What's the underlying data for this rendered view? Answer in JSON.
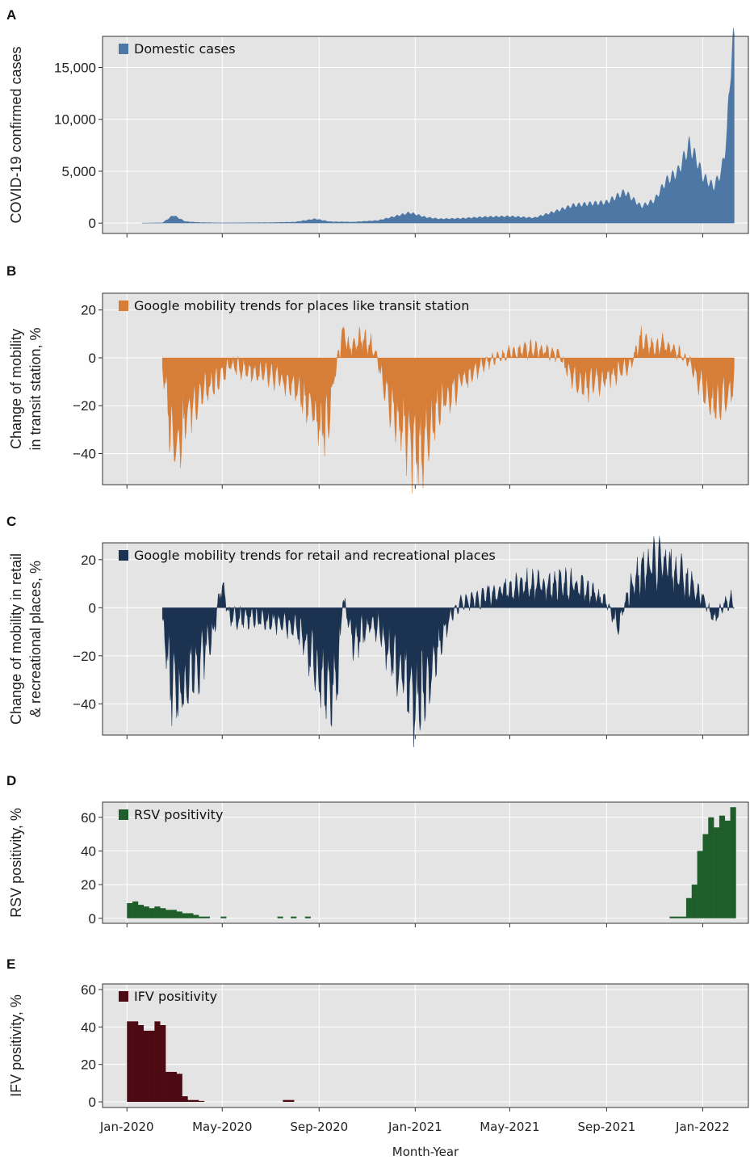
{
  "x_axis": {
    "title": "Month-Year",
    "tick_labels": [
      "Jan-2020",
      "May-2020",
      "Sep-2020",
      "Jan-2021",
      "May-2021",
      "Sep-2021",
      "Jan-2022"
    ],
    "range": [
      "2019-12-01",
      "2022-02-28"
    ]
  },
  "colors": {
    "panel_bg": "#e4e4e4",
    "grid": "#ffffff",
    "cases": "#4d77a4",
    "transit": "#d67d38",
    "retail": "#1b3250",
    "rsv": "#1f5e2a",
    "ifv": "#4d0a12"
  },
  "chart_data": [
    {
      "letter": "A",
      "type": "area",
      "ylabel": "COVID-19 confirmed cases",
      "ylim": [
        -1000,
        18000
      ],
      "yticks": [
        0,
        5000,
        10000,
        15000
      ],
      "ytick_labels": [
        "0",
        "5,000",
        "10,000",
        "15,000"
      ],
      "grid": true,
      "legend": "top-left",
      "series": [
        {
          "name": "Domestic cases",
          "x": [
            "2020-01-20",
            "2020-02-15",
            "2020-02-29",
            "2020-03-15",
            "2020-04-01",
            "2020-05-01",
            "2020-06-01",
            "2020-07-01",
            "2020-08-01",
            "2020-08-27",
            "2020-09-15",
            "2020-10-15",
            "2020-11-15",
            "2020-12-01",
            "2020-12-25",
            "2021-01-15",
            "2021-02-01",
            "2021-03-01",
            "2021-04-01",
            "2021-05-01",
            "2021-06-01",
            "2021-07-01",
            "2021-07-20",
            "2021-08-15",
            "2021-09-01",
            "2021-09-24",
            "2021-10-15",
            "2021-11-01",
            "2021-11-15",
            "2021-12-01",
            "2021-12-15",
            "2021-12-25",
            "2022-01-01",
            "2022-01-15",
            "2022-01-25",
            "2022-02-01",
            "2022-02-05",
            "2022-02-10"
          ],
          "y": [
            1,
            30,
            750,
            150,
            60,
            20,
            40,
            50,
            100,
            400,
            130,
            100,
            250,
            550,
            1000,
            550,
            400,
            450,
            600,
            650,
            500,
            1200,
            1700,
            1900,
            2000,
            3000,
            1600,
            2200,
            4000,
            5000,
            7500,
            6000,
            4500,
            3500,
            5000,
            8500,
            15000,
            17300
          ]
        }
      ]
    },
    {
      "letter": "B",
      "type": "area",
      "ylabel": "Change of mobility\nin transit station, %",
      "ylim": [
        -53,
        27
      ],
      "yticks": [
        20,
        0,
        -20,
        -40
      ],
      "ytick_labels": [
        "20",
        "0",
        "−20",
        "−40"
      ],
      "grid": true,
      "legend": "top-left",
      "series": [
        {
          "name": "Google mobility trends for places like transit station",
          "x": [
            "2020-02-15",
            "2020-02-25",
            "2020-03-05",
            "2020-03-20",
            "2020-04-05",
            "2020-04-20",
            "2020-05-10",
            "2020-06-01",
            "2020-07-01",
            "2020-08-01",
            "2020-08-20",
            "2020-09-01",
            "2020-09-10",
            "2020-09-20",
            "2020-10-01",
            "2020-10-10",
            "2020-10-20",
            "2020-11-01",
            "2020-11-10",
            "2020-11-20",
            "2020-12-01",
            "2020-12-15",
            "2020-12-30",
            "2021-01-15",
            "2021-02-01",
            "2021-03-01",
            "2021-04-01",
            "2021-05-01",
            "2021-06-01",
            "2021-07-01",
            "2021-07-15",
            "2021-08-01",
            "2021-09-01",
            "2021-10-01",
            "2021-10-15",
            "2021-11-01",
            "2021-11-15",
            "2021-12-01",
            "2021-12-15",
            "2022-01-01",
            "2022-01-15",
            "2022-02-01",
            "2022-02-10"
          ],
          "y": [
            -3,
            -28,
            -35,
            -22,
            -14,
            -12,
            -3,
            -5,
            -8,
            -12,
            -20,
            -27,
            -30,
            -8,
            10,
            4,
            8,
            7,
            4,
            -8,
            -20,
            -28,
            -40,
            -35,
            -20,
            -10,
            -2,
            2,
            4,
            2,
            -6,
            -12,
            -8,
            -3,
            8,
            4,
            6,
            2,
            -2,
            -12,
            -20,
            -15,
            -10
          ]
        }
      ]
    },
    {
      "letter": "C",
      "type": "area",
      "ylabel": "Change of mobility in retail\n& recreational places, %",
      "ylim": [
        -53,
        27
      ],
      "yticks": [
        20,
        0,
        -20,
        -40
      ],
      "ytick_labels": [
        "20",
        "0",
        "−20",
        "−40"
      ],
      "grid": true,
      "legend": "top-left",
      "series": [
        {
          "name": "Google mobility trends for retail and recreational places",
          "x": [
            "2020-02-15",
            "2020-02-25",
            "2020-03-05",
            "2020-03-20",
            "2020-04-05",
            "2020-04-20",
            "2020-05-01",
            "2020-05-10",
            "2020-06-01",
            "2020-07-01",
            "2020-08-01",
            "2020-08-20",
            "2020-09-01",
            "2020-09-15",
            "2020-09-25",
            "2020-10-01",
            "2020-10-15",
            "2020-11-01",
            "2020-11-15",
            "2020-12-01",
            "2020-12-15",
            "2021-01-01",
            "2021-01-15",
            "2021-02-01",
            "2021-02-15",
            "2021-03-01",
            "2021-04-01",
            "2021-05-01",
            "2021-06-01",
            "2021-07-01",
            "2021-08-01",
            "2021-09-01",
            "2021-09-15",
            "2021-10-01",
            "2021-10-15",
            "2021-11-01",
            "2021-11-15",
            "2021-12-01",
            "2021-12-15",
            "2022-01-01",
            "2022-01-15",
            "2022-02-01",
            "2022-02-10"
          ],
          "y": [
            -5,
            -30,
            -38,
            -28,
            -20,
            -10,
            12,
            -5,
            -4,
            -6,
            -8,
            -18,
            -28,
            -35,
            -30,
            5,
            -15,
            -8,
            -8,
            -20,
            -28,
            -38,
            -36,
            -15,
            -3,
            2,
            5,
            8,
            10,
            10,
            8,
            2,
            -8,
            8,
            15,
            18,
            17,
            14,
            10,
            4,
            -5,
            3,
            4
          ]
        }
      ]
    },
    {
      "letter": "D",
      "type": "bar",
      "ylabel": "RSV positivity, %",
      "ylim": [
        -3,
        69
      ],
      "yticks": [
        0,
        20,
        40,
        60
      ],
      "ytick_labels": [
        "0",
        "20",
        "40",
        "60"
      ],
      "grid": true,
      "legend": "top-left",
      "series": [
        {
          "name": "RSV positivity",
          "weeks": [
            "2020-01-01",
            "2020-01-08",
            "2020-01-15",
            "2020-01-22",
            "2020-01-29",
            "2020-02-05",
            "2020-02-12",
            "2020-02-19",
            "2020-02-26",
            "2020-03-04",
            "2020-03-11",
            "2020-03-18",
            "2020-03-25",
            "2020-04-01",
            "2020-04-08",
            "2020-04-29",
            "2020-07-10",
            "2020-07-27",
            "2020-08-14",
            "2021-11-20",
            "2021-11-27",
            "2021-12-04",
            "2021-12-11",
            "2021-12-18",
            "2021-12-25",
            "2022-01-01",
            "2022-01-08",
            "2022-01-15",
            "2022-01-22",
            "2022-01-29",
            "2022-02-05"
          ],
          "values": [
            9,
            10,
            8,
            7,
            6,
            7,
            6,
            5,
            5,
            4,
            3,
            3,
            2,
            1,
            1,
            1,
            1,
            1,
            1,
            1,
            1,
            1,
            12,
            20,
            40,
            50,
            60,
            54,
            61,
            58,
            66
          ]
        }
      ]
    },
    {
      "letter": "E",
      "type": "bar",
      "ylabel": "IFV positivity, %",
      "ylim": [
        -3,
        63
      ],
      "yticks": [
        0,
        20,
        40,
        60
      ],
      "ytick_labels": [
        "0",
        "20",
        "40",
        "60"
      ],
      "grid": true,
      "legend": "top-left",
      "series": [
        {
          "name": "IFV positivity",
          "weeks": [
            "2020-01-01",
            "2020-01-08",
            "2020-01-15",
            "2020-01-22",
            "2020-01-29",
            "2020-02-05",
            "2020-02-12",
            "2020-02-19",
            "2020-02-26",
            "2020-03-04",
            "2020-03-11",
            "2020-03-18",
            "2020-03-25",
            "2020-04-01",
            "2020-07-17",
            "2020-07-24"
          ],
          "values": [
            43,
            43,
            41,
            38,
            38,
            43,
            41,
            16,
            16,
            15,
            3,
            1,
            1,
            0.5,
            1,
            1
          ]
        }
      ]
    }
  ]
}
